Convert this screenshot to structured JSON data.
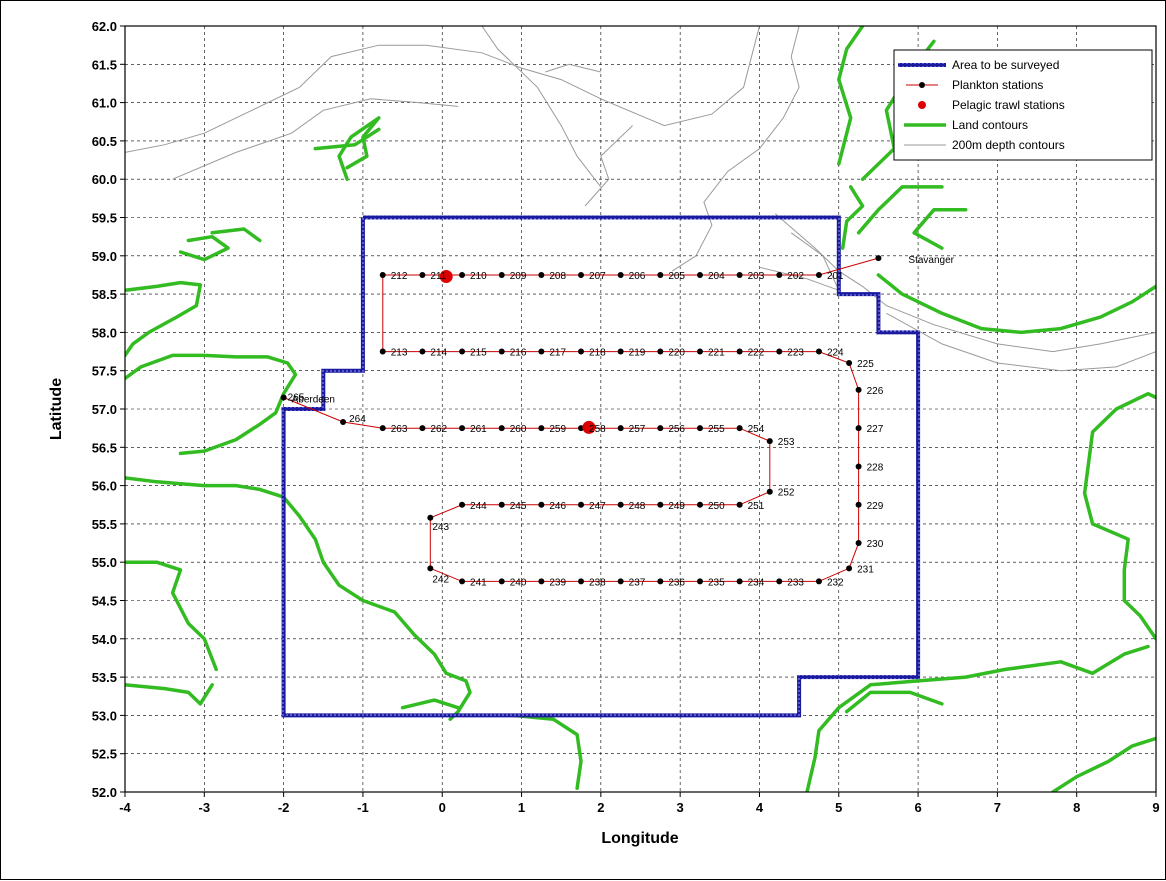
{
  "chart_data": {
    "type": "scatter",
    "title": "",
    "xlabel": "Longitude",
    "ylabel": "Latitude",
    "xlim": [
      -4,
      9
    ],
    "ylim": [
      52.0,
      62.0
    ],
    "x_ticks": [
      -4,
      -3,
      -2,
      -1,
      0,
      1,
      2,
      3,
      4,
      5,
      6,
      7,
      8,
      9
    ],
    "y_ticks": [
      "52.0",
      "52.5",
      "53.0",
      "53.5",
      "54.0",
      "54.5",
      "55.0",
      "55.5",
      "56.0",
      "56.5",
      "57.0",
      "57.5",
      "58.0",
      "58.5",
      "59.0",
      "59.5",
      "60.0",
      "60.5",
      "61.0",
      "61.5",
      "62.0"
    ],
    "grid": true,
    "legend_position": "top-right",
    "legend": [
      {
        "name": "Area to be surveyed",
        "color": "#1a1aa0"
      },
      {
        "name": "Plankton stations",
        "color": "#cc0000"
      },
      {
        "name": "Pelagic trawl stations",
        "color": "#dd0000"
      },
      {
        "name": "Land contours",
        "color": "#33bb22"
      },
      {
        "name": "200m depth contours",
        "color": "#999999"
      }
    ],
    "survey_area": [
      [
        -1,
        59.5
      ],
      [
        5,
        59.5
      ],
      [
        5,
        58.5
      ],
      [
        5.5,
        58.5
      ],
      [
        5.5,
        58
      ],
      [
        6,
        58
      ],
      [
        6,
        53.5
      ],
      [
        4.5,
        53.5
      ],
      [
        4.5,
        53
      ],
      [
        0,
        53
      ],
      [
        0,
        53
      ],
      [
        -2,
        53
      ],
      [
        -2,
        55.8
      ],
      [
        -2,
        57
      ],
      [
        -1.5,
        57
      ],
      [
        -1.5,
        57.5
      ],
      [
        -1,
        57.5
      ],
      [
        -1,
        59.5
      ]
    ],
    "plankton_stations": [
      {
        "id": "201",
        "lon": 4.75,
        "lat": 58.75
      },
      {
        "id": "202",
        "lon": 4.25,
        "lat": 58.75
      },
      {
        "id": "203",
        "lon": 3.75,
        "lat": 58.75
      },
      {
        "id": "204",
        "lon": 3.25,
        "lat": 58.75
      },
      {
        "id": "205",
        "lon": 2.75,
        "lat": 58.75
      },
      {
        "id": "206",
        "lon": 2.25,
        "lat": 58.75
      },
      {
        "id": "207",
        "lon": 1.75,
        "lat": 58.75
      },
      {
        "id": "208",
        "lon": 1.25,
        "lat": 58.75
      },
      {
        "id": "209",
        "lon": 0.75,
        "lat": 58.75
      },
      {
        "id": "210",
        "lon": 0.25,
        "lat": 58.75
      },
      {
        "id": "211",
        "lon": -0.25,
        "lat": 58.75
      },
      {
        "id": "212",
        "lon": -0.75,
        "lat": 58.75
      },
      {
        "id": "213",
        "lon": -0.75,
        "lat": 57.75
      },
      {
        "id": "214",
        "lon": -0.25,
        "lat": 57.75
      },
      {
        "id": "215",
        "lon": 0.25,
        "lat": 57.75
      },
      {
        "id": "216",
        "lon": 0.75,
        "lat": 57.75
      },
      {
        "id": "217",
        "lon": 1.25,
        "lat": 57.75
      },
      {
        "id": "218",
        "lon": 1.75,
        "lat": 57.75
      },
      {
        "id": "219",
        "lon": 2.25,
        "lat": 57.75
      },
      {
        "id": "220",
        "lon": 2.75,
        "lat": 57.75
      },
      {
        "id": "221",
        "lon": 3.25,
        "lat": 57.75
      },
      {
        "id": "222",
        "lon": 3.75,
        "lat": 57.75
      },
      {
        "id": "223",
        "lon": 4.25,
        "lat": 57.75
      },
      {
        "id": "224",
        "lon": 4.75,
        "lat": 57.75
      },
      {
        "id": "225",
        "lon": 5.13,
        "lat": 57.6
      },
      {
        "id": "226",
        "lon": 5.25,
        "lat": 57.25
      },
      {
        "id": "227",
        "lon": 5.25,
        "lat": 56.75
      },
      {
        "id": "228",
        "lon": 5.25,
        "lat": 56.25
      },
      {
        "id": "229",
        "lon": 5.25,
        "lat": 55.75
      },
      {
        "id": "230",
        "lon": 5.25,
        "lat": 55.25
      },
      {
        "id": "231",
        "lon": 5.13,
        "lat": 54.92
      },
      {
        "id": "232",
        "lon": 4.75,
        "lat": 54.75
      },
      {
        "id": "233",
        "lon": 4.25,
        "lat": 54.75
      },
      {
        "id": "234",
        "lon": 3.75,
        "lat": 54.75
      },
      {
        "id": "235",
        "lon": 3.25,
        "lat": 54.75
      },
      {
        "id": "236",
        "lon": 2.75,
        "lat": 54.75
      },
      {
        "id": "237",
        "lon": 2.25,
        "lat": 54.75
      },
      {
        "id": "238",
        "lon": 1.75,
        "lat": 54.75
      },
      {
        "id": "239",
        "lon": 1.25,
        "lat": 54.75
      },
      {
        "id": "240",
        "lon": 0.75,
        "lat": 54.75
      },
      {
        "id": "241",
        "lon": 0.25,
        "lat": 54.75
      },
      {
        "id": "242",
        "lon": -0.15,
        "lat": 54.92
      },
      {
        "id": "243",
        "lon": -0.15,
        "lat": 55.58
      },
      {
        "id": "244",
        "lon": 0.25,
        "lat": 55.75
      },
      {
        "id": "245",
        "lon": 0.75,
        "lat": 55.75
      },
      {
        "id": "246",
        "lon": 1.25,
        "lat": 55.75
      },
      {
        "id": "247",
        "lon": 1.75,
        "lat": 55.75
      },
      {
        "id": "248",
        "lon": 2.25,
        "lat": 55.75
      },
      {
        "id": "249",
        "lon": 2.75,
        "lat": 55.75
      },
      {
        "id": "250",
        "lon": 3.25,
        "lat": 55.75
      },
      {
        "id": "251",
        "lon": 3.75,
        "lat": 55.75
      },
      {
        "id": "252",
        "lon": 4.13,
        "lat": 55.92
      },
      {
        "id": "253",
        "lon": 4.13,
        "lat": 56.58
      },
      {
        "id": "254",
        "lon": 3.75,
        "lat": 56.75
      },
      {
        "id": "255",
        "lon": 3.25,
        "lat": 56.75
      },
      {
        "id": "256",
        "lon": 2.75,
        "lat": 56.75
      },
      {
        "id": "257",
        "lon": 2.25,
        "lat": 56.75
      },
      {
        "id": "258",
        "lon": 1.75,
        "lat": 56.75
      },
      {
        "id": "259",
        "lon": 1.25,
        "lat": 56.75
      },
      {
        "id": "260",
        "lon": 0.75,
        "lat": 56.75
      },
      {
        "id": "261",
        "lon": 0.25,
        "lat": 56.75
      },
      {
        "id": "262",
        "lon": -0.25,
        "lat": 56.75
      },
      {
        "id": "263",
        "lon": -0.75,
        "lat": 56.75
      },
      {
        "id": "264",
        "lon": -1.25,
        "lat": 56.83
      },
      {
        "id": "265",
        "lon": -2.0,
        "lat": 57.15
      }
    ],
    "plankton_route_start": {
      "lon": 5.5,
      "lat": 58.97
    },
    "trawl_stations": [
      {
        "lon": 0.05,
        "lat": 58.73
      },
      {
        "lon": 1.85,
        "lat": 56.76
      }
    ],
    "places": [
      {
        "name": "Stavanger",
        "lon": 5.5,
        "lat": 58.97
      },
      {
        "name": "Aberdeen",
        "lon": -2.0,
        "lat": 57.15
      }
    ],
    "land_contours": [
      [
        [
          -4,
          58.55
        ],
        [
          -3.6,
          58.6
        ],
        [
          -3.3,
          58.65
        ],
        [
          -3.05,
          58.62
        ],
        [
          -3.1,
          58.35
        ],
        [
          -3.35,
          58.2
        ],
        [
          -3.7,
          58.0
        ],
        [
          -3.9,
          57.85
        ],
        [
          -4,
          57.7
        ]
      ],
      [
        [
          -4,
          57.4
        ],
        [
          -3.8,
          57.55
        ],
        [
          -3.4,
          57.7
        ],
        [
          -3.0,
          57.7
        ],
        [
          -2.6,
          57.68
        ],
        [
          -2.2,
          57.68
        ],
        [
          -1.95,
          57.6
        ],
        [
          -1.85,
          57.45
        ],
        [
          -2.0,
          57.2
        ],
        [
          -2.1,
          56.95
        ],
        [
          -2.3,
          56.8
        ],
        [
          -2.6,
          56.6
        ],
        [
          -3.0,
          56.45
        ],
        [
          -3.3,
          56.42
        ]
      ],
      [
        [
          -4,
          56.1
        ],
        [
          -3.6,
          56.05
        ],
        [
          -3.0,
          56.0
        ],
        [
          -2.6,
          56.0
        ],
        [
          -2.3,
          55.95
        ],
        [
          -2.0,
          55.85
        ],
        [
          -1.8,
          55.6
        ],
        [
          -1.6,
          55.3
        ],
        [
          -1.5,
          55.0
        ],
        [
          -1.3,
          54.7
        ],
        [
          -1.0,
          54.5
        ],
        [
          -0.6,
          54.35
        ],
        [
          -0.35,
          54.05
        ],
        [
          -0.1,
          53.8
        ],
        [
          0.05,
          53.55
        ],
        [
          0.3,
          53.45
        ],
        [
          0.35,
          53.3
        ],
        [
          0.2,
          53.05
        ],
        [
          0.1,
          52.95
        ]
      ],
      [
        [
          -4,
          55.0
        ],
        [
          -3.6,
          55.0
        ],
        [
          -3.3,
          54.9
        ],
        [
          -3.4,
          54.6
        ],
        [
          -3.2,
          54.2
        ],
        [
          -3.0,
          54.0
        ],
        [
          -2.85,
          53.6
        ]
      ],
      [
        [
          -4,
          53.4
        ],
        [
          -3.5,
          53.35
        ],
        [
          -3.2,
          53.3
        ],
        [
          -3.05,
          53.15
        ],
        [
          -2.9,
          53.4
        ]
      ],
      [
        [
          0.9,
          53.0
        ],
        [
          1.4,
          52.95
        ],
        [
          1.7,
          52.75
        ],
        [
          1.75,
          52.4
        ],
        [
          1.7,
          52.05
        ]
      ],
      [
        [
          -0.5,
          53.1
        ],
        [
          -0.1,
          53.2
        ],
        [
          0.2,
          53.1
        ]
      ],
      [
        [
          4.6,
          52.0
        ],
        [
          4.7,
          52.45
        ],
        [
          4.75,
          52.8
        ],
        [
          5.0,
          53.1
        ],
        [
          5.4,
          53.4
        ],
        [
          6.0,
          53.45
        ],
        [
          6.6,
          53.5
        ],
        [
          7.1,
          53.6
        ],
        [
          7.8,
          53.7
        ],
        [
          8.2,
          53.55
        ],
        [
          8.6,
          53.8
        ],
        [
          8.9,
          53.9
        ]
      ],
      [
        [
          5.1,
          53.05
        ],
        [
          5.4,
          53.3
        ],
        [
          5.9,
          53.3
        ],
        [
          6.3,
          53.15
        ]
      ],
      [
        [
          7.7,
          52.0
        ],
        [
          8.0,
          52.2
        ],
        [
          8.4,
          52.4
        ],
        [
          8.7,
          52.6
        ],
        [
          9.0,
          52.7
        ]
      ],
      [
        [
          9,
          54.0
        ],
        [
          8.8,
          54.3
        ],
        [
          8.6,
          54.5
        ],
        [
          8.6,
          54.9
        ],
        [
          8.65,
          55.3
        ],
        [
          8.2,
          55.5
        ],
        [
          8.1,
          55.9
        ],
        [
          8.15,
          56.3
        ],
        [
          8.2,
          56.7
        ],
        [
          8.5,
          57.0
        ],
        [
          8.9,
          57.2
        ],
        [
          9.0,
          57.15
        ]
      ],
      [
        [
          5.5,
          58.75
        ],
        [
          5.8,
          58.5
        ],
        [
          6.3,
          58.25
        ],
        [
          6.8,
          58.05
        ],
        [
          7.3,
          58.0
        ],
        [
          7.8,
          58.05
        ],
        [
          8.3,
          58.2
        ],
        [
          8.7,
          58.4
        ],
        [
          9.0,
          58.6
        ]
      ],
      [
        [
          5.0,
          60.2
        ],
        [
          5.15,
          60.8
        ],
        [
          5.0,
          61.3
        ],
        [
          5.1,
          61.7
        ],
        [
          5.3,
          62.0
        ]
      ],
      [
        [
          5.3,
          60.0
        ],
        [
          5.7,
          60.4
        ],
        [
          5.6,
          60.9
        ],
        [
          5.9,
          61.4
        ],
        [
          6.2,
          61.8
        ]
      ],
      [
        [
          5.25,
          59.3
        ],
        [
          5.5,
          59.6
        ],
        [
          5.8,
          59.9
        ],
        [
          6.3,
          59.9
        ]
      ],
      [
        [
          5.05,
          59.1
        ],
        [
          5.1,
          59.45
        ],
        [
          5.3,
          59.65
        ],
        [
          5.15,
          59.9
        ]
      ],
      [
        [
          6.3,
          59.1
        ],
        [
          5.95,
          59.3
        ],
        [
          6.2,
          59.6
        ],
        [
          6.6,
          59.6
        ]
      ],
      [
        [
          -1.2,
          60.0
        ],
        [
          -1.3,
          60.3
        ],
        [
          -1.15,
          60.55
        ],
        [
          -0.8,
          60.8
        ],
        [
          -1.0,
          60.55
        ],
        [
          -0.95,
          60.3
        ],
        [
          -1.2,
          60.15
        ]
      ],
      [
        [
          -1.6,
          60.4
        ],
        [
          -1.1,
          60.45
        ],
        [
          -0.8,
          60.65
        ]
      ],
      [
        [
          -3.3,
          59.05
        ],
        [
          -3.0,
          58.95
        ],
        [
          -2.7,
          59.1
        ],
        [
          -2.9,
          59.25
        ],
        [
          -3.2,
          59.2
        ]
      ],
      [
        [
          -2.9,
          59.3
        ],
        [
          -2.5,
          59.35
        ],
        [
          -2.3,
          59.2
        ]
      ]
    ],
    "depth_contours": [
      [
        [
          -4,
          60.35
        ],
        [
          -3.5,
          60.45
        ],
        [
          -3.0,
          60.6
        ],
        [
          -2.4,
          60.9
        ],
        [
          -1.8,
          61.2
        ],
        [
          -1.4,
          61.6
        ],
        [
          -0.8,
          61.75
        ],
        [
          -0.2,
          61.75
        ],
        [
          0.5,
          61.65
        ],
        [
          1.0,
          61.45
        ],
        [
          1.5,
          61.3
        ],
        [
          2.0,
          61.05
        ],
        [
          2.8,
          60.7
        ],
        [
          3.4,
          60.85
        ],
        [
          3.8,
          61.2
        ],
        [
          3.9,
          61.6
        ],
        [
          4.0,
          62.0
        ]
      ],
      [
        [
          -3.4,
          60.0
        ],
        [
          -2.6,
          60.35
        ],
        [
          -1.9,
          60.6
        ],
        [
          -1.5,
          60.9
        ],
        [
          -0.9,
          61.05
        ],
        [
          -0.3,
          61.0
        ],
        [
          0.2,
          60.95
        ]
      ],
      [
        [
          1.3,
          61.4
        ],
        [
          1.6,
          61.5
        ],
        [
          2.0,
          61.4
        ]
      ],
      [
        [
          1.8,
          59.65
        ],
        [
          2.1,
          60.0
        ],
        [
          2.0,
          60.3
        ],
        [
          2.4,
          60.7
        ]
      ],
      [
        [
          4.2,
          59.55
        ],
        [
          4.7,
          59.1
        ],
        [
          5.0,
          58.8
        ],
        [
          5.3,
          58.6
        ],
        [
          5.6,
          58.35
        ],
        [
          6.2,
          58.1
        ],
        [
          7.0,
          57.85
        ],
        [
          7.7,
          57.75
        ],
        [
          8.3,
          57.85
        ],
        [
          9.0,
          58.0
        ]
      ],
      [
        [
          5.6,
          58.25
        ],
        [
          6.3,
          57.85
        ],
        [
          7.0,
          57.6
        ],
        [
          7.8,
          57.5
        ],
        [
          8.5,
          57.55
        ],
        [
          9.0,
          57.75
        ]
      ],
      [
        [
          4.0,
          58.85
        ],
        [
          4.6,
          58.7
        ],
        [
          5.0,
          58.55
        ],
        [
          4.8,
          59.0
        ],
        [
          4.4,
          59.3
        ]
      ],
      [
        [
          4.5,
          62.0
        ],
        [
          4.4,
          61.6
        ],
        [
          4.5,
          61.2
        ],
        [
          4.3,
          60.8
        ],
        [
          4.0,
          60.4
        ],
        [
          3.6,
          60.1
        ],
        [
          3.3,
          59.7
        ],
        [
          3.4,
          59.4
        ],
        [
          3.2,
          59.0
        ],
        [
          2.9,
          58.8
        ]
      ],
      [
        [
          0.5,
          62.0
        ],
        [
          0.7,
          61.7
        ],
        [
          0.9,
          61.5
        ],
        [
          1.2,
          61.2
        ],
        [
          1.5,
          60.7
        ],
        [
          1.7,
          60.3
        ],
        [
          2.0,
          59.9
        ]
      ]
    ]
  }
}
